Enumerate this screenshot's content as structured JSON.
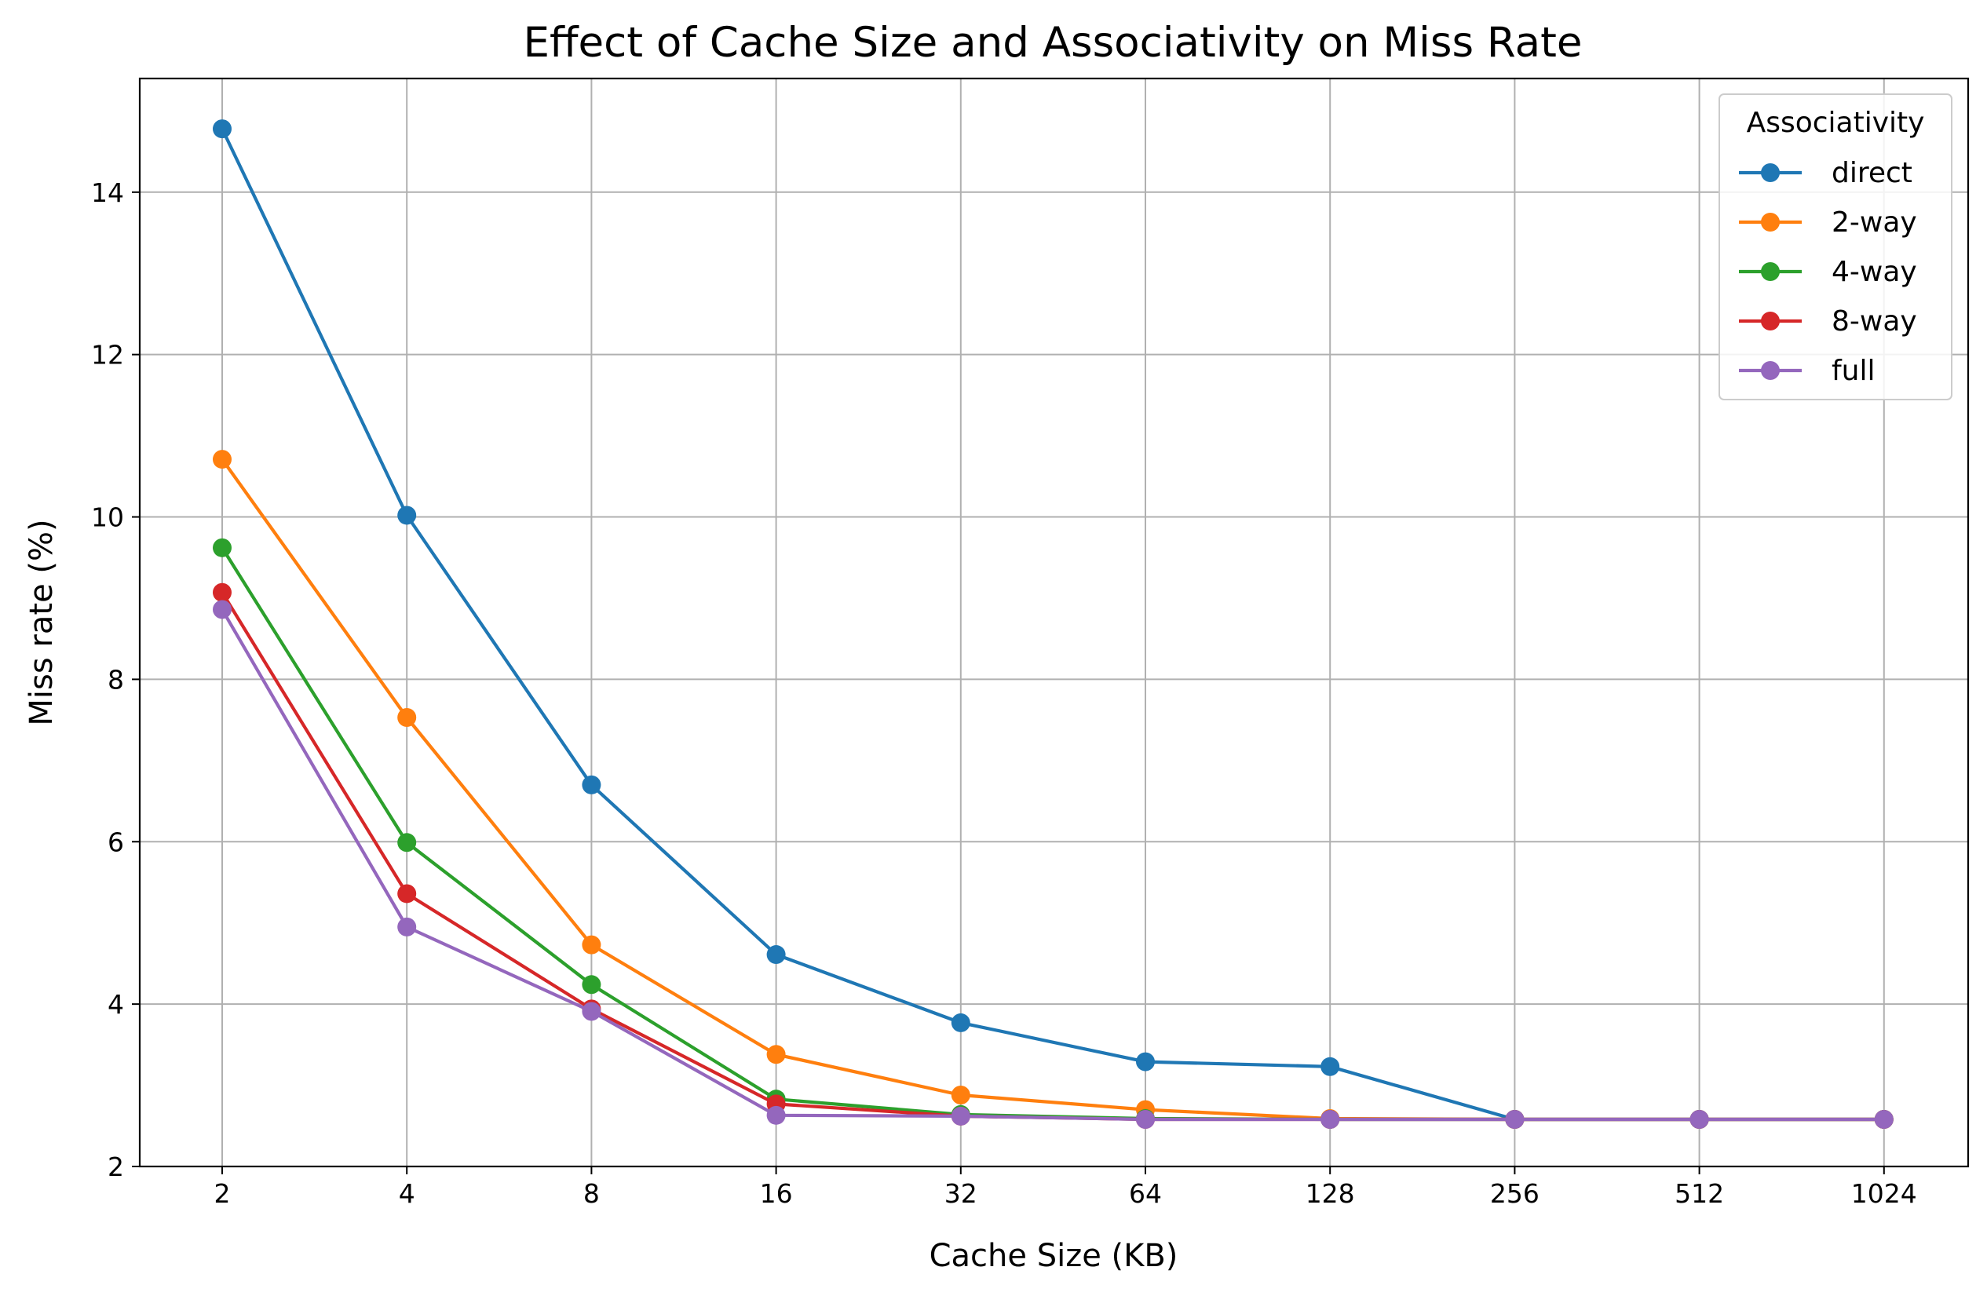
{
  "chart_data": {
    "type": "line",
    "title": "Effect of Cache Size and Associativity on Miss Rate",
    "xlabel": "Cache Size (KB)",
    "ylabel": "Miss rate (%)",
    "x": [
      2,
      4,
      8,
      16,
      32,
      64,
      128,
      256,
      512,
      1024
    ],
    "x_tick_labels": [
      "2",
      "4",
      "8",
      "16",
      "32",
      "64",
      "128",
      "256",
      "512",
      "1024"
    ],
    "x_scale": "log2",
    "y_ticks": [
      2,
      4,
      6,
      8,
      10,
      12,
      14
    ],
    "y_tick_labels": [
      "2",
      "4",
      "6",
      "8",
      "10",
      "12",
      "14"
    ],
    "ylim": [
      2.0,
      15.4
    ],
    "grid": true,
    "legend": {
      "title": "Associativity",
      "placement": "top-right"
    },
    "series": [
      {
        "name": "direct",
        "color": "#1f77b4",
        "values": [
          14.78,
          10.02,
          6.7,
          4.61,
          3.77,
          3.29,
          3.23,
          2.58,
          2.58,
          2.58
        ]
      },
      {
        "name": "2-way",
        "color": "#ff7f0e",
        "values": [
          10.71,
          7.53,
          4.73,
          3.38,
          2.88,
          2.7,
          2.59,
          2.58,
          2.58,
          2.58
        ]
      },
      {
        "name": "4-way",
        "color": "#2ca02c",
        "values": [
          9.62,
          5.99,
          4.24,
          2.83,
          2.64,
          2.59,
          2.58,
          2.58,
          2.58,
          2.58
        ]
      },
      {
        "name": "8-way",
        "color": "#d62728",
        "values": [
          9.07,
          5.36,
          3.94,
          2.77,
          2.62,
          2.58,
          2.58,
          2.58,
          2.58,
          2.58
        ]
      },
      {
        "name": "full",
        "color": "#9467bd",
        "values": [
          8.86,
          4.95,
          3.91,
          2.63,
          2.62,
          2.58,
          2.58,
          2.58,
          2.58,
          2.58
        ]
      }
    ]
  }
}
